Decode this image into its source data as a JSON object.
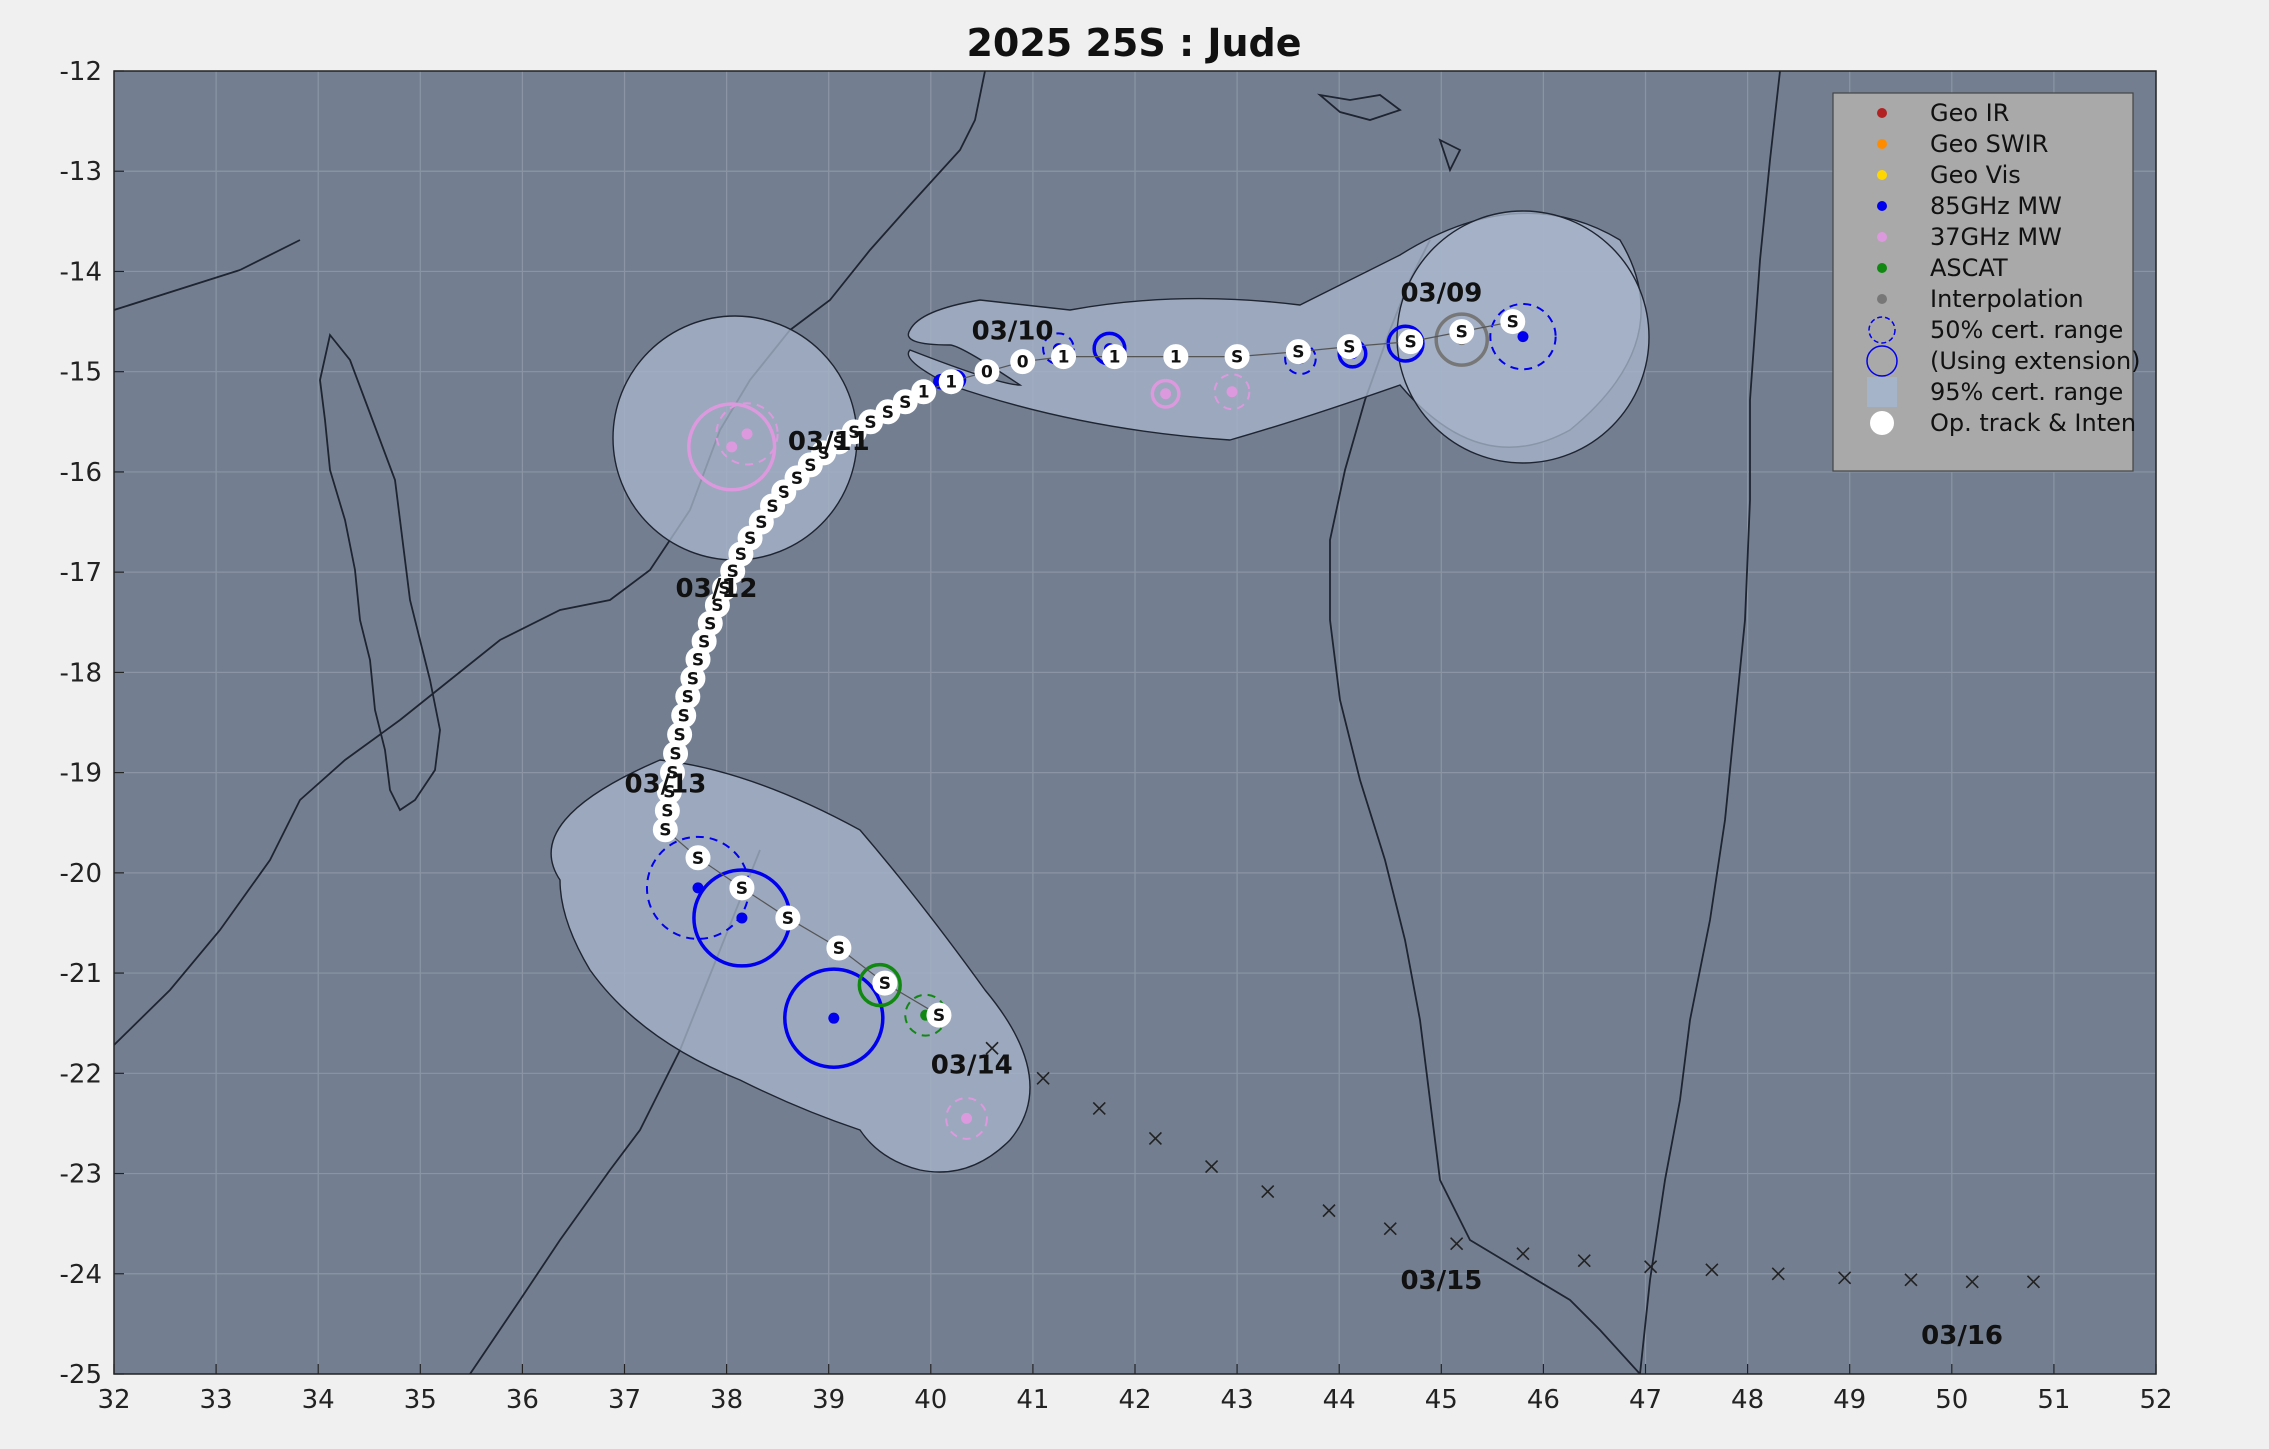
{
  "title": "2025  25S :  Jude",
  "colors": {
    "ocean": "#737f91",
    "land": "#737f91",
    "cone": "#a6b4c9",
    "grid": "#8a94a4",
    "geo_ir": "#b22222",
    "geo_swir": "#ff8c00",
    "geo_vis": "#ffd700",
    "mw85": "#0000ee",
    "mw37": "#dd99dd",
    "ascat": "#118811",
    "interp": "#777777"
  },
  "chart_data": {
    "type": "scatter",
    "xlim": [
      32,
      52
    ],
    "ylim": [
      -25,
      -12
    ],
    "x_ticks": [
      "32",
      "33",
      "34",
      "35",
      "36",
      "37",
      "38",
      "39",
      "40",
      "41",
      "42",
      "43",
      "44",
      "45",
      "46",
      "47",
      "48",
      "49",
      "50",
      "51",
      "52"
    ],
    "y_ticks": [
      "-12",
      "-13",
      "-14",
      "-15",
      "-16",
      "-17",
      "-18",
      "-19",
      "-20",
      "-21",
      "-22",
      "-23",
      "-24",
      "-25"
    ],
    "grid": true,
    "legend_position": "top-right",
    "legend": [
      {
        "label": "Geo IR",
        "icon": "dot",
        "color": "#b22222"
      },
      {
        "label": "Geo SWIR",
        "icon": "dot",
        "color": "#ff8c00"
      },
      {
        "label": "Geo Vis",
        "icon": "dot",
        "color": "#ffd700"
      },
      {
        "label": "85GHz MW",
        "icon": "dot",
        "color": "#0000ee"
      },
      {
        "label": "37GHz MW",
        "icon": "dot",
        "color": "#dd99dd"
      },
      {
        "label": "ASCAT",
        "icon": "dot",
        "color": "#118811"
      },
      {
        "label": "Interpolation",
        "icon": "dot",
        "color": "#777777"
      },
      {
        "label": "50% cert. range",
        "icon": "dashed-circle",
        "color": "#0000ee"
      },
      {
        "label": "(Using extension)",
        "icon": "circle",
        "color": "#0000ee"
      },
      {
        "label": "95% cert. range",
        "icon": "square",
        "color": "#a6b4c9"
      },
      {
        "label": "Op. track & Inten",
        "icon": "dot",
        "color": "#ffffff"
      }
    ],
    "op_track": [
      {
        "x": 45.7,
        "y": -14.5,
        "s": "S"
      },
      {
        "x": 45.2,
        "y": -14.6,
        "s": "S"
      },
      {
        "x": 44.7,
        "y": -14.7,
        "s": "S"
      },
      {
        "x": 44.1,
        "y": -14.75,
        "s": "S"
      },
      {
        "x": 43.6,
        "y": -14.8,
        "s": "S"
      },
      {
        "x": 43.0,
        "y": -14.85,
        "s": "S"
      },
      {
        "x": 42.4,
        "y": -14.85,
        "s": "1"
      },
      {
        "x": 41.8,
        "y": -14.85,
        "s": "1"
      },
      {
        "x": 41.3,
        "y": -14.85,
        "s": "1"
      },
      {
        "x": 40.9,
        "y": -14.9,
        "s": "0"
      },
      {
        "x": 40.55,
        "y": -15.0,
        "s": "0"
      },
      {
        "x": 40.2,
        "y": -15.1,
        "s": "1"
      },
      {
        "x": 39.93,
        "y": -15.2,
        "s": "1"
      },
      {
        "x": 39.75,
        "y": -15.3,
        "s": "S"
      },
      {
        "x": 39.58,
        "y": -15.4,
        "s": "S"
      },
      {
        "x": 39.41,
        "y": -15.5,
        "s": "S"
      },
      {
        "x": 39.25,
        "y": -15.6,
        "s": "S"
      },
      {
        "x": 39.1,
        "y": -15.7,
        "s": "S"
      },
      {
        "x": 38.95,
        "y": -15.81,
        "s": "S"
      },
      {
        "x": 38.82,
        "y": -15.93,
        "s": "S"
      },
      {
        "x": 38.69,
        "y": -16.06,
        "s": "S"
      },
      {
        "x": 38.56,
        "y": -16.2,
        "s": "S"
      },
      {
        "x": 38.45,
        "y": -16.34,
        "s": "S"
      },
      {
        "x": 38.34,
        "y": -16.5,
        "s": "S"
      },
      {
        "x": 38.23,
        "y": -16.66,
        "s": "S"
      },
      {
        "x": 38.14,
        "y": -16.82,
        "s": "S"
      },
      {
        "x": 38.06,
        "y": -16.99,
        "s": "S"
      },
      {
        "x": 37.98,
        "y": -17.16,
        "s": "S"
      },
      {
        "x": 37.91,
        "y": -17.33,
        "s": "S"
      },
      {
        "x": 37.84,
        "y": -17.51,
        "s": "S"
      },
      {
        "x": 37.78,
        "y": -17.69,
        "s": "S"
      },
      {
        "x": 37.72,
        "y": -17.87,
        "s": "S"
      },
      {
        "x": 37.67,
        "y": -18.06,
        "s": "S"
      },
      {
        "x": 37.62,
        "y": -18.24,
        "s": "S"
      },
      {
        "x": 37.58,
        "y": -18.43,
        "s": "S"
      },
      {
        "x": 37.54,
        "y": -18.62,
        "s": "S"
      },
      {
        "x": 37.5,
        "y": -18.81,
        "s": "S"
      },
      {
        "x": 37.47,
        "y": -19.0,
        "s": "S"
      },
      {
        "x": 37.44,
        "y": -19.19,
        "s": "S"
      },
      {
        "x": 37.42,
        "y": -19.38,
        "s": "S"
      },
      {
        "x": 37.4,
        "y": -19.57,
        "s": "S"
      },
      {
        "x": 37.72,
        "y": -19.85,
        "s": "S"
      },
      {
        "x": 38.15,
        "y": -20.15,
        "s": "S"
      },
      {
        "x": 38.6,
        "y": -20.45,
        "s": "S"
      },
      {
        "x": 39.1,
        "y": -20.75,
        "s": "S"
      },
      {
        "x": 39.55,
        "y": -21.1,
        "s": "S"
      },
      {
        "x": 40.08,
        "y": -21.42,
        "s": "S"
      }
    ],
    "fixes": [
      {
        "x": 45.8,
        "y": -14.65,
        "type": "mw85",
        "r50": 0.32,
        "dashed": true
      },
      {
        "x": 45.2,
        "y": -14.68,
        "type": "interp",
        "r50": 0.25,
        "dashed": false
      },
      {
        "x": 44.65,
        "y": -14.72,
        "type": "mw85",
        "r50": 0.17,
        "dashed": false
      },
      {
        "x": 44.13,
        "y": -14.82,
        "type": "mw85",
        "r50": 0.13,
        "dashed": false
      },
      {
        "x": 43.62,
        "y": -14.87,
        "type": "mw85",
        "r50": 0.15,
        "dashed": true
      },
      {
        "x": 42.95,
        "y": -15.2,
        "type": "mw37",
        "r50": 0.17,
        "dashed": true
      },
      {
        "x": 42.3,
        "y": -15.22,
        "type": "mw37",
        "r50": 0.13,
        "dashed": false
      },
      {
        "x": 41.75,
        "y": -14.77,
        "type": "mw85",
        "r50": 0.15,
        "dashed": false
      },
      {
        "x": 41.25,
        "y": -14.77,
        "type": "mw85",
        "r50": 0.15,
        "dashed": true
      },
      {
        "x": 40.25,
        "y": -15.08,
        "type": "mw85",
        "r50": 0.08,
        "dashed": false
      },
      {
        "x": 40.1,
        "y": -15.1,
        "type": "mw85",
        "r50": 0.06,
        "dashed": false
      },
      {
        "x": 38.2,
        "y": -15.62,
        "type": "mw37",
        "r50": 0.3,
        "dashed": true
      },
      {
        "x": 38.05,
        "y": -15.75,
        "type": "mw37",
        "r50": 0.42,
        "dashed": false
      },
      {
        "x": 37.72,
        "y": -20.15,
        "type": "mw85",
        "r50": 0.5,
        "dashed": true
      },
      {
        "x": 38.15,
        "y": -20.45,
        "type": "mw85",
        "r50": 0.47,
        "dashed": false
      },
      {
        "x": 39.05,
        "y": -21.45,
        "type": "mw85",
        "r50": 0.48,
        "dashed": false
      },
      {
        "x": 39.5,
        "y": -21.12,
        "type": "ascat",
        "r50": 0.2,
        "dashed": false
      },
      {
        "x": 39.95,
        "y": -21.42,
        "type": "ascat",
        "r50": 0.2,
        "dashed": true
      },
      {
        "x": 40.35,
        "y": -22.45,
        "type": "mw37",
        "r50": 0.2,
        "dashed": true
      }
    ],
    "date_labels": [
      {
        "x": 44.6,
        "y": -14.3,
        "text": "03/09"
      },
      {
        "x": 40.4,
        "y": -14.68,
        "text": "03/10"
      },
      {
        "x": 38.6,
        "y": -15.78,
        "text": "03/11"
      },
      {
        "x": 37.5,
        "y": -17.25,
        "text": "03/12"
      },
      {
        "x": 37.0,
        "y": -19.2,
        "text": "03/13"
      },
      {
        "x": 40.0,
        "y": -22.0,
        "text": "03/14"
      },
      {
        "x": 44.6,
        "y": -24.15,
        "text": "03/15"
      },
      {
        "x": 49.7,
        "y": -24.7,
        "text": "03/16"
      }
    ],
    "forecast_track": [
      {
        "x": 40.6,
        "y": -21.75
      },
      {
        "x": 41.1,
        "y": -22.05
      },
      {
        "x": 41.65,
        "y": -22.35
      },
      {
        "x": 42.2,
        "y": -22.65
      },
      {
        "x": 42.75,
        "y": -22.93
      },
      {
        "x": 43.3,
        "y": -23.18
      },
      {
        "x": 43.9,
        "y": -23.37
      },
      {
        "x": 44.5,
        "y": -23.55
      },
      {
        "x": 45.15,
        "y": -23.7
      },
      {
        "x": 45.8,
        "y": -23.8
      },
      {
        "x": 46.4,
        "y": -23.87
      },
      {
        "x": 47.05,
        "y": -23.93
      },
      {
        "x": 47.65,
        "y": -23.96
      },
      {
        "x": 48.3,
        "y": -24.0
      },
      {
        "x": 48.95,
        "y": -24.04
      },
      {
        "x": 49.6,
        "y": -24.06
      },
      {
        "x": 50.2,
        "y": -24.08
      },
      {
        "x": 50.8,
        "y": -24.08
      }
    ]
  }
}
